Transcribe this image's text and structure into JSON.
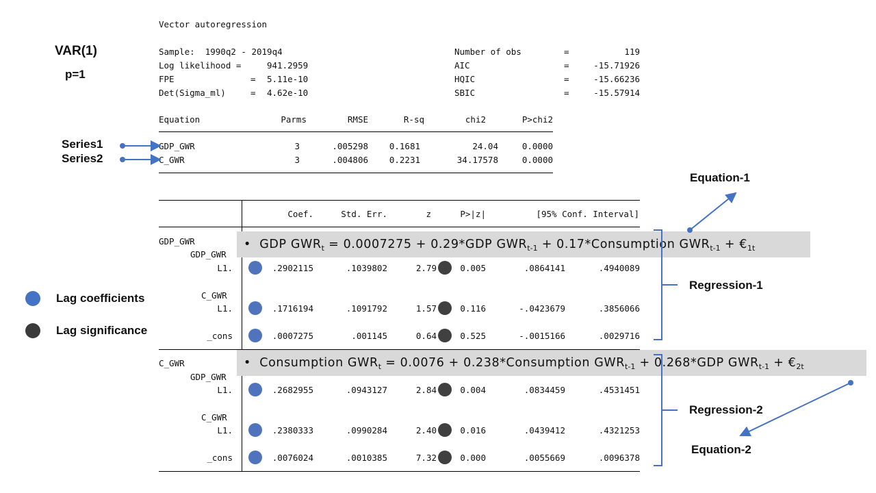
{
  "header": {
    "title": "Vector autoregression",
    "sample_label": "Sample:  1990q2 - 2019q4",
    "ll_label": "Log likelihood =",
    "ll_value": "941.2959",
    "fpe_label": "FPE",
    "fpe_eq": "=",
    "fpe_value": "5.11e-10",
    "det_label": "Det(Sigma_ml)",
    "det_eq": "=",
    "det_value": "4.62e-10",
    "nobs_label": "Number of obs",
    "nobs_value": "119",
    "aic_label": "AIC",
    "aic_value": "-15.71926",
    "hqic_label": "HQIC",
    "hqic_value": "-15.66236",
    "sbic_label": "SBIC",
    "sbic_value": "-15.57914",
    "eq_sign": "="
  },
  "model_labels": {
    "var": "VAR(1)",
    "p": "p=1",
    "series1": "Series1",
    "series2": "Series2"
  },
  "summary": {
    "headers": [
      "Equation",
      "Parms",
      "RMSE",
      "R-sq",
      "chi2",
      "P>chi2"
    ],
    "rows": [
      [
        "GDP_GWR",
        "3",
        ".005298",
        "0.1681",
        "24.04",
        "0.0000"
      ],
      [
        "C_GWR",
        "3",
        ".004806",
        "0.2231",
        "34.17578",
        "0.0000"
      ]
    ]
  },
  "coef": {
    "headers": [
      "Coef.",
      "Std. Err.",
      "z",
      "P>|z|",
      "[95% Conf. Interval]"
    ],
    "eq1": "GDP_GWR",
    "eq2": "C_GWR",
    "var_gdp": "GDP_GWR",
    "var_c": "C_GWR",
    "lag": "L1.",
    "cons": "_cons",
    "rows": [
      [
        ".2902115",
        ".1039802",
        "2.79",
        "0.005",
        ".0864141",
        ".4940089"
      ],
      [
        ".1716194",
        ".1091792",
        "1.57",
        "0.116",
        "-.0423679",
        ".3856066"
      ],
      [
        ".0007275",
        ".001145",
        "0.64",
        "0.525",
        "-.0015166",
        ".0029716"
      ],
      [
        ".2682955",
        ".0943127",
        "2.84",
        "0.004",
        ".0834459",
        ".4531451"
      ],
      [
        ".2380333",
        ".0990284",
        "2.40",
        "0.016",
        ".0439412",
        ".4321253"
      ],
      [
        ".0076024",
        ".0010385",
        "7.32",
        "0.000",
        ".0055669",
        ".0096378"
      ]
    ]
  },
  "equations": {
    "bullet": "•",
    "eq1": {
      "a": "GDP GWR",
      "s1": "t",
      "b": " = 0.0007275 + 0.29*GDP GWR",
      "s2": "t-1",
      "c": " + 0.17*Consumption GWR",
      "s3": "t-1",
      "d": " + €",
      "s4": "1t"
    },
    "eq2": {
      "a": "Consumption GWR",
      "s1": "t",
      "b": " = 0.0076 + 0.238*Consumption GWR",
      "s2": "t-1",
      "c": " + 0.268*GDP GWR",
      "s3": "t-1",
      "d": " + €",
      "s4": "2t"
    }
  },
  "annotations": {
    "equation1": "Equation-1",
    "regression1": "Regression-1",
    "regression2": "Regression-2",
    "equation2": "Equation-2"
  },
  "legend": {
    "lag_coefficients": "Lag coefficients",
    "lag_significance": "Lag significance"
  },
  "colors": {
    "accent_blue": "#4472c4",
    "dark_dot": "#404040",
    "band_gray": "#d9d9d9"
  }
}
